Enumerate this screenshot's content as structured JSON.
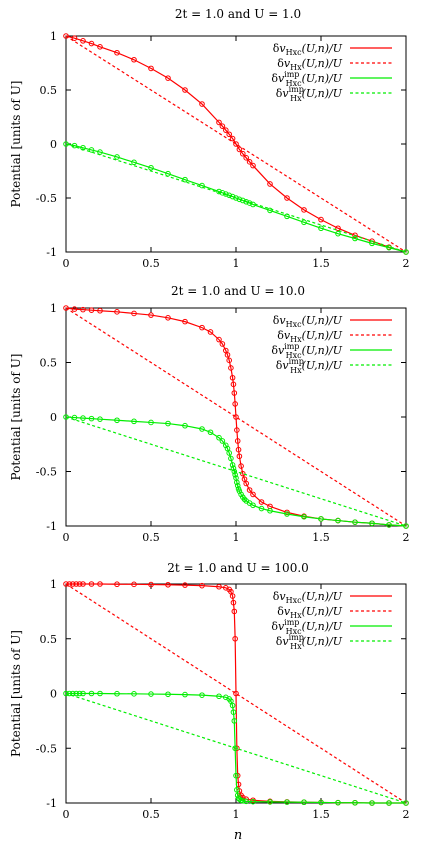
{
  "chart_data": [
    {
      "type": "line",
      "title": "2t = 1.0 and U = 1.0",
      "ylabel": "Potential [units of U]",
      "xlabel": "",
      "xlim": [
        0,
        2
      ],
      "ylim": [
        -1,
        1
      ],
      "xticks": [
        "0",
        "0.5",
        "1",
        "1.5",
        "2"
      ],
      "yticks": [
        "1",
        "0.5",
        "0",
        "-0.5",
        "-1"
      ],
      "grid": false,
      "legend_position": "top-right",
      "series": [
        {
          "name": "δv_Hxc(U,n)/U",
          "color": "#ff0000",
          "dashed": false,
          "markers": true,
          "x": [
            0,
            0.05,
            0.1,
            0.15,
            0.2,
            0.3,
            0.4,
            0.5,
            0.6,
            0.7,
            0.8,
            0.9,
            0.92,
            0.94,
            0.96,
            0.98,
            1.0,
            1.02,
            1.04,
            1.06,
            1.08,
            1.1,
            1.2,
            1.3,
            1.4,
            1.5,
            1.6,
            1.7,
            1.8,
            1.9,
            2.0
          ],
          "y": [
            1.0,
            0.98,
            0.955,
            0.93,
            0.9,
            0.845,
            0.78,
            0.7,
            0.61,
            0.5,
            0.37,
            0.2,
            0.165,
            0.128,
            0.09,
            0.05,
            0.0,
            -0.05,
            -0.09,
            -0.128,
            -0.165,
            -0.2,
            -0.37,
            -0.5,
            -0.61,
            -0.7,
            -0.78,
            -0.845,
            -0.9,
            -0.955,
            -1.0
          ]
        },
        {
          "name": "δv_Hx(U,n)/U",
          "color": "#ff0000",
          "dashed": true,
          "markers": false,
          "x": [
            0,
            2
          ],
          "y": [
            1,
            -1
          ]
        },
        {
          "name": "δv_Hxc^imp(U,n)/U",
          "color": "#00ee00",
          "dashed": false,
          "markers": true,
          "x": [
            0,
            0.05,
            0.1,
            0.15,
            0.2,
            0.3,
            0.4,
            0.5,
            0.6,
            0.7,
            0.8,
            0.9,
            0.92,
            0.94,
            0.96,
            0.98,
            1.0,
            1.02,
            1.04,
            1.06,
            1.08,
            1.1,
            1.2,
            1.3,
            1.4,
            1.5,
            1.6,
            1.7,
            1.8,
            1.9,
            2.0
          ],
          "y": [
            0.0,
            -0.015,
            -0.035,
            -0.055,
            -0.075,
            -0.12,
            -0.17,
            -0.22,
            -0.275,
            -0.33,
            -0.385,
            -0.44,
            -0.452,
            -0.463,
            -0.475,
            -0.487,
            -0.5,
            -0.512,
            -0.523,
            -0.535,
            -0.547,
            -0.56,
            -0.615,
            -0.67,
            -0.725,
            -0.78,
            -0.83,
            -0.875,
            -0.92,
            -0.96,
            -1.0
          ]
        },
        {
          "name": "δv_Hx^imp(U,n)/U",
          "color": "#00ee00",
          "dashed": true,
          "markers": false,
          "x": [
            0,
            2
          ],
          "y": [
            0,
            -1
          ]
        }
      ]
    },
    {
      "type": "line",
      "title": "2t = 1.0 and U = 10.0",
      "ylabel": "Potential [units of U]",
      "xlabel": "",
      "xlim": [
        0,
        2
      ],
      "ylim": [
        -1,
        1
      ],
      "xticks": [
        "0",
        "0.5",
        "1",
        "1.5",
        "2"
      ],
      "yticks": [
        "1",
        "0.5",
        "0",
        "-0.5",
        "-1"
      ],
      "grid": false,
      "legend_position": "top-right",
      "series": [
        {
          "name": "δv_Hxc(U,n)/U",
          "color": "#ff0000",
          "dashed": false,
          "markers": true,
          "x": [
            0,
            0.05,
            0.1,
            0.15,
            0.2,
            0.3,
            0.4,
            0.5,
            0.6,
            0.7,
            0.8,
            0.85,
            0.9,
            0.92,
            0.94,
            0.95,
            0.96,
            0.97,
            0.98,
            0.985,
            0.99,
            0.995,
            1.0,
            1.005,
            1.01,
            1.015,
            1.02,
            1.03,
            1.04,
            1.05,
            1.06,
            1.08,
            1.1,
            1.15,
            1.2,
            1.3,
            1.4,
            1.5,
            1.6,
            1.7,
            1.8,
            1.9,
            2.0
          ],
          "y": [
            1.0,
            0.99,
            0.985,
            0.98,
            0.975,
            0.965,
            0.95,
            0.935,
            0.91,
            0.875,
            0.82,
            0.78,
            0.71,
            0.67,
            0.61,
            0.57,
            0.52,
            0.45,
            0.36,
            0.3,
            0.22,
            0.12,
            0.0,
            -0.12,
            -0.22,
            -0.3,
            -0.36,
            -0.45,
            -0.52,
            -0.57,
            -0.61,
            -0.67,
            -0.71,
            -0.78,
            -0.82,
            -0.875,
            -0.91,
            -0.935,
            -0.95,
            -0.965,
            -0.975,
            -0.99,
            -1.0
          ]
        },
        {
          "name": "δv_Hx(U,n)/U",
          "color": "#ff0000",
          "dashed": true,
          "markers": false,
          "x": [
            0,
            2
          ],
          "y": [
            1,
            -1
          ]
        },
        {
          "name": "δv_Hxc^imp(U,n)/U",
          "color": "#00ee00",
          "dashed": false,
          "markers": true,
          "x": [
            0,
            0.05,
            0.1,
            0.15,
            0.2,
            0.3,
            0.4,
            0.5,
            0.6,
            0.7,
            0.8,
            0.85,
            0.9,
            0.92,
            0.94,
            0.95,
            0.96,
            0.97,
            0.98,
            0.985,
            0.99,
            0.995,
            1.0,
            1.005,
            1.01,
            1.015,
            1.02,
            1.03,
            1.04,
            1.05,
            1.06,
            1.08,
            1.1,
            1.15,
            1.2,
            1.3,
            1.4,
            1.5,
            1.6,
            1.7,
            1.8,
            1.9,
            2.0
          ],
          "y": [
            0.0,
            -0.005,
            -0.01,
            -0.015,
            -0.02,
            -0.03,
            -0.04,
            -0.05,
            -0.06,
            -0.08,
            -0.11,
            -0.14,
            -0.19,
            -0.22,
            -0.26,
            -0.29,
            -0.33,
            -0.38,
            -0.44,
            -0.47,
            -0.5,
            -0.53,
            -0.56,
            -0.6,
            -0.63,
            -0.66,
            -0.68,
            -0.71,
            -0.735,
            -0.755,
            -0.77,
            -0.79,
            -0.81,
            -0.84,
            -0.86,
            -0.89,
            -0.915,
            -0.935,
            -0.95,
            -0.965,
            -0.975,
            -0.99,
            -1.0
          ]
        },
        {
          "name": "δv_Hx^imp(U,n)/U",
          "color": "#00ee00",
          "dashed": true,
          "markers": false,
          "x": [
            0,
            2
          ],
          "y": [
            0,
            -1
          ]
        }
      ]
    },
    {
      "type": "line",
      "title": "2t = 1.0 and U = 100.0",
      "ylabel": "Potential [units of U]",
      "xlabel": "n",
      "xlim": [
        0,
        2
      ],
      "ylim": [
        -1,
        1
      ],
      "xticks": [
        "0",
        "0.5",
        "1",
        "1.5",
        "2"
      ],
      "yticks": [
        "1",
        "0.5",
        "0",
        "-0.5",
        "-1"
      ],
      "grid": false,
      "legend_position": "top-right",
      "series": [
        {
          "name": "δv_Hxc(U,n)/U",
          "color": "#ff0000",
          "dashed": false,
          "markers": true,
          "x": [
            0,
            0.02,
            0.04,
            0.06,
            0.08,
            0.1,
            0.15,
            0.2,
            0.3,
            0.4,
            0.5,
            0.6,
            0.7,
            0.8,
            0.9,
            0.94,
            0.96,
            0.97,
            0.98,
            0.985,
            0.99,
            0.995,
            1.0,
            1.005,
            1.01,
            1.015,
            1.02,
            1.03,
            1.04,
            1.06,
            1.1,
            1.2,
            1.3,
            1.4,
            1.5,
            1.6,
            1.7,
            1.8,
            1.9,
            2.0
          ],
          "y": [
            1.0,
            1.0,
            1.0,
            1.0,
            1.0,
            1.0,
            1.0,
            1.0,
            0.998,
            0.997,
            0.995,
            0.993,
            0.99,
            0.985,
            0.975,
            0.965,
            0.95,
            0.93,
            0.89,
            0.83,
            0.75,
            0.5,
            0.0,
            -0.5,
            -0.75,
            -0.83,
            -0.89,
            -0.93,
            -0.95,
            -0.965,
            -0.975,
            -0.985,
            -0.99,
            -0.993,
            -0.995,
            -0.997,
            -0.998,
            -1.0,
            -1.0,
            -1.0
          ]
        },
        {
          "name": "δv_Hx(U,n)/U",
          "color": "#ff0000",
          "dashed": true,
          "markers": false,
          "x": [
            0,
            2
          ],
          "y": [
            1,
            -1
          ]
        },
        {
          "name": "δv_Hxc^imp(U,n)/U",
          "color": "#00ee00",
          "dashed": false,
          "markers": true,
          "x": [
            0,
            0.02,
            0.04,
            0.06,
            0.08,
            0.1,
            0.15,
            0.2,
            0.3,
            0.4,
            0.5,
            0.6,
            0.7,
            0.8,
            0.9,
            0.94,
            0.96,
            0.97,
            0.98,
            0.985,
            0.99,
            0.995,
            1.0,
            1.005,
            1.01,
            1.015,
            1.02,
            1.03,
            1.04,
            1.06,
            1.1,
            1.2,
            1.3,
            1.4,
            1.5,
            1.6,
            1.7,
            1.8,
            1.9,
            2.0
          ],
          "y": [
            0.0,
            0.0,
            0.0,
            0.0,
            0.0,
            0.0,
            0.0,
            0.0,
            -0.002,
            -0.003,
            -0.005,
            -0.007,
            -0.01,
            -0.015,
            -0.025,
            -0.035,
            -0.05,
            -0.07,
            -0.11,
            -0.17,
            -0.25,
            -0.5,
            -0.75,
            -0.88,
            -0.93,
            -0.955,
            -0.965,
            -0.975,
            -0.98,
            -0.985,
            -0.988,
            -0.99,
            -0.992,
            -0.993,
            -0.995,
            -0.997,
            -0.998,
            -1.0,
            -1.0,
            -1.0
          ]
        },
        {
          "name": "δv_Hx^imp(U,n)/U",
          "color": "#00ee00",
          "dashed": true,
          "markers": false,
          "x": [
            0,
            2
          ],
          "y": [
            0,
            -1
          ]
        }
      ]
    }
  ]
}
